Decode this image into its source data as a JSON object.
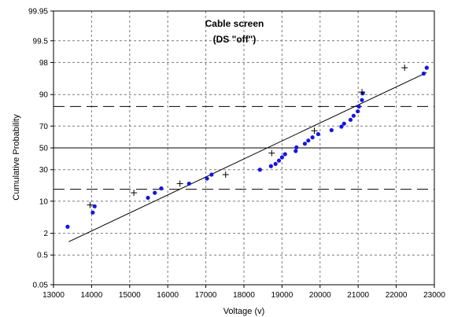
{
  "chart_data": {
    "type": "scatter",
    "title_lines": [
      "Cable screen",
      "(DS \"off\")"
    ],
    "xlabel": "Voltage (v)",
    "ylabel": "Cumulative Probability",
    "y_scale": "normal-probability",
    "xlim": [
      13000,
      23000
    ],
    "x_ticks": [
      13000,
      14000,
      15000,
      16000,
      17000,
      18000,
      19000,
      20000,
      21000,
      22000,
      23000
    ],
    "y_ticks": [
      0.05,
      0.5,
      2,
      10,
      30,
      50,
      70,
      90,
      98,
      99.5,
      99.95
    ],
    "ylim": [
      0.05,
      99.95
    ],
    "grid": true,
    "reference_lines": [
      {
        "y": 50,
        "style": "solid"
      },
      {
        "y": 16,
        "style": "dashed"
      },
      {
        "y": 84,
        "style": "dashed"
      }
    ],
    "series": [
      {
        "marker": "dot",
        "color": "#1515e0",
        "points": [
          [
            13370,
            2.9
          ],
          [
            14030,
            6.0
          ],
          [
            14080,
            8.0
          ],
          [
            15480,
            11.5
          ],
          [
            15660,
            14.0
          ],
          [
            15830,
            16.5
          ],
          [
            16560,
            19.5
          ],
          [
            17030,
            23.0
          ],
          [
            17150,
            26.0
          ],
          [
            18420,
            30.0
          ],
          [
            18710,
            33.0
          ],
          [
            18830,
            35.0
          ],
          [
            18920,
            38.0
          ],
          [
            19000,
            41.0
          ],
          [
            19080,
            44.0
          ],
          [
            19360,
            47.0
          ],
          [
            19380,
            50.5
          ],
          [
            19600,
            54.0
          ],
          [
            19690,
            57.0
          ],
          [
            19800,
            60.0
          ],
          [
            19950,
            63.0
          ],
          [
            20300,
            66.5
          ],
          [
            20560,
            69.5
          ],
          [
            20630,
            72.0
          ],
          [
            20800,
            75.0
          ],
          [
            20880,
            78.0
          ],
          [
            20990,
            81.0
          ],
          [
            21020,
            84.0
          ],
          [
            21100,
            87.5
          ],
          [
            21120,
            90.5
          ],
          [
            22720,
            96.3
          ],
          [
            22800,
            97.3
          ]
        ]
      },
      {
        "marker": "cross",
        "color": "#000000",
        "points": [
          [
            13960,
            8.5
          ],
          [
            15110,
            14.0
          ],
          [
            16320,
            19.5
          ],
          [
            17520,
            26.0
          ],
          [
            18730,
            45.0
          ],
          [
            19850,
            66.0
          ],
          [
            21100,
            91.0
          ],
          [
            22220,
            97.3
          ]
        ]
      }
    ],
    "fit_line": {
      "points": [
        [
          13400,
          1.2
        ],
        [
          22800,
          96.5
        ]
      ]
    }
  }
}
